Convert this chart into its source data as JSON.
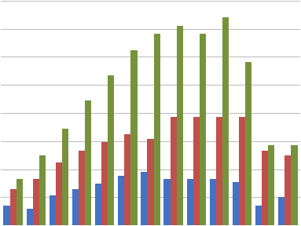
{
  "groups": 13,
  "blue": [
    1.2,
    1.0,
    1.8,
    2.2,
    2.5,
    3.0,
    3.2,
    2.8,
    2.8,
    2.8,
    2.6,
    1.2,
    1.7
  ],
  "red": [
    2.2,
    2.8,
    3.8,
    4.5,
    5.0,
    5.5,
    5.2,
    6.5,
    6.5,
    6.5,
    6.5,
    4.5,
    4.2
  ],
  "green": [
    2.8,
    4.2,
    5.8,
    7.5,
    9.0,
    10.5,
    11.5,
    12.0,
    11.5,
    12.5,
    9.8,
    4.8,
    4.8
  ],
  "blue_color": "#4472C4",
  "red_color": "#C0504D",
  "green_color": "#76933C",
  "bg_color": "#FFFFFF",
  "grid_color": "#BFBFBF",
  "bar_width": 0.28,
  "ylim": [
    0,
    13.5
  ],
  "xlabel": "",
  "ylabel": ""
}
